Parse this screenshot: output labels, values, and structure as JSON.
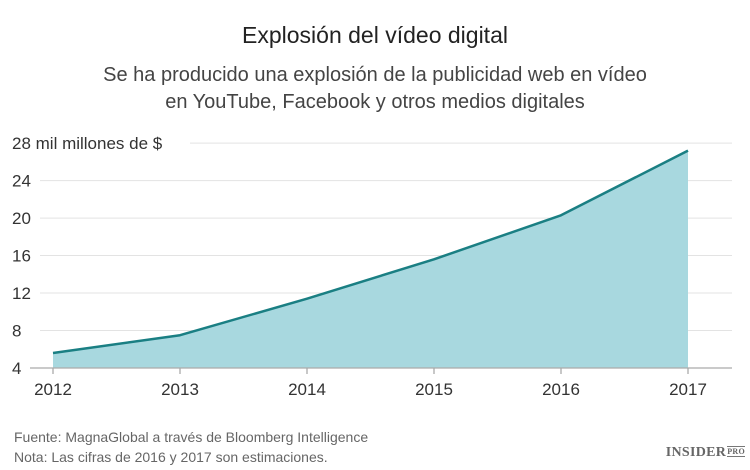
{
  "header": {
    "title": "Explosión del vídeo digital",
    "subtitle_line1": "Se ha producido una explosión de la publicidad web en vídeo",
    "subtitle_line2": "en YouTube, Facebook y otros medios digitales"
  },
  "footer": {
    "source": "Fuente: MagnaGlobal a través de Bloomberg Intelligence",
    "note": "Nota: Las cifras de 2016 y 2017 son estimaciones.",
    "brand": "INSIDER",
    "brand_suffix": "PRO"
  },
  "colors": {
    "line": "#1a7f83",
    "fill": "#a8d8df",
    "grid": "#e3e3e3",
    "axis": "#aaaaaa"
  },
  "chart_data": {
    "type": "area",
    "title": "Explosión del vídeo digital",
    "subtitle": "Se ha producido una explosión de la publicidad web en vídeo en YouTube, Facebook y otros medios digitales",
    "xlabel": "",
    "ylabel": "mil millones de $",
    "categories": [
      "2012",
      "2013",
      "2014",
      "2015",
      "2016",
      "2017"
    ],
    "values": [
      5.6,
      7.5,
      11.4,
      15.6,
      20.3,
      27.2
    ],
    "ylim": [
      4,
      28
    ],
    "yticks": [
      4,
      8,
      12,
      16,
      20,
      24,
      28
    ],
    "ytick_labels": [
      "4",
      "8",
      "12",
      "16",
      "20",
      "24",
      "28 mil millones de $"
    ],
    "grid": true,
    "legend": "none",
    "annotations": [
      "Las cifras de 2016 y 2017 son estimaciones."
    ]
  }
}
